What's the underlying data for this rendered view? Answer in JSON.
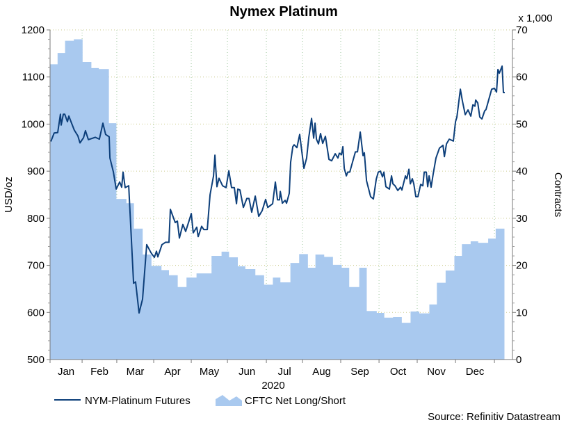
{
  "chart_data": {
    "type": "line+area",
    "title": "Nymex Platinum",
    "xlabel": "2020",
    "ylabel_left": "USD/oz",
    "ylabel_right": "Contracts",
    "right_multiplier": "x 1,000",
    "source": "Source: Refinitiv Datastream",
    "x_unit": "days from start of plot",
    "xlim": [
      0,
      369.4
    ],
    "ylim_left": [
      500,
      1200
    ],
    "ylim_right": [
      0,
      70
    ],
    "left_ticks": [
      500,
      600,
      700,
      800,
      900,
      1000,
      1100,
      1200
    ],
    "right_ticks": [
      0,
      10,
      20,
      30,
      40,
      50,
      60,
      70
    ],
    "month_boundaries": [
      0,
      25.6,
      53.3,
      82.8,
      112.8,
      141.7,
      172.8,
      201.7,
      232.2,
      262.8,
      293.3,
      323.9,
      355
    ],
    "months": [
      "Jan",
      "Feb",
      "Mar",
      "Apr",
      "May",
      "Jun",
      "Jul",
      "Aug",
      "Sep",
      "Oct",
      "Nov",
      "Dec"
    ],
    "grid": true,
    "legend_position": "bottom-left",
    "colors": {
      "line": "#0d3f7a",
      "area": "#a9c9ef",
      "grid": "#c9c98a"
    },
    "series": [
      {
        "name": "NYM-Platinum Futures",
        "axis": "left",
        "kind": "line",
        "x": [
          0.6,
          3.3,
          6.1,
          8.3,
          8.9,
          10.6,
          11.7,
          13.9,
          15,
          16.7,
          19.4,
          22.2,
          23.9,
          26.7,
          28.3,
          30.6,
          36.1,
          39.4,
          42.2,
          44.4,
          47.2,
          47.8,
          50.6,
          52.8,
          55.6,
          57.2,
          58.3,
          60,
          62.8,
          66.7,
          68.3,
          71.1,
          73.9,
          77.2,
          80.6,
          83.3,
          85,
          86.1,
          89.4,
          92.2,
          95,
          96.1,
          100,
          101.7,
          103.3,
          106.1,
          108.3,
          111.1,
          112.8,
          114.4,
          117.2,
          118.3,
          121.1,
          122.8,
          125.6,
          127.8,
          130.6,
          131.7,
          133.3,
          135,
          137.8,
          140.6,
          142.8,
          145,
          147.2,
          148.9,
          150,
          151.7,
          154.4,
          157.2,
          158.9,
          161.1,
          163.9,
          166.7,
          169.4,
          172.2,
          173.9,
          177.8,
          180,
          181.7,
          183.3,
          183.9,
          185.6,
          187.8,
          188.9,
          191.1,
          192.2,
          193.9,
          195,
          197.2,
          199.4,
          202.8,
          205,
          206.7,
          208.9,
          210.6,
          211.7,
          212.8,
          214.4,
          216.1,
          217.8,
          220,
          222.8,
          225,
          227.8,
          230,
          231.1,
          232.8,
          233.9,
          235,
          236.7,
          237.8,
          239.4,
          243.9,
          245.6,
          247.8,
          250,
          251.1,
          252.8,
          256.1,
          258.3,
          260.6,
          262.2,
          263.9,
          265.6,
          266.7,
          268.3,
          271.1,
          272.8,
          273.9,
          275.6,
          277.8,
          280,
          281.1,
          283.9,
          285,
          286.7,
          287.8,
          289.4,
          290.6,
          292.2,
          293.9,
          296.1,
          297.8,
          298.9,
          300.6,
          301.7,
          302.8,
          304.4,
          306.1,
          308.3,
          311.1,
          313.9,
          315,
          316.7,
          318.9,
          322.2,
          323.9,
          325,
          327.8,
          329.4,
          331.7,
          333.9,
          336.1,
          337.8,
          339.4,
          340,
          341.7,
          343.3,
          345,
          347.2,
          348.3,
          352.8,
          355,
          356.7,
          357.8,
          358.9,
          361.1,
          362.2,
          363.3
        ],
        "y": [
          963,
          981,
          982,
          1021,
          998,
          1021,
          1021,
          1005,
          1017,
          1005,
          987,
          975,
          960,
          971,
          986,
          967,
          972,
          968,
          1002,
          978,
          973,
          928,
          898,
          862,
          877,
          866,
          898,
          865,
          869,
          662,
          665,
          599,
          628,
          744,
          727,
          717,
          730,
          718,
          744,
          749,
          749,
          819,
          791,
          794,
          758,
          787,
          772,
          795,
          810,
          769,
          781,
          761,
          783,
          776,
          776,
          850,
          890,
          934,
          867,
          885,
          869,
          865,
          901,
          865,
          865,
          831,
          862,
          860,
          823,
          842,
          842,
          813,
          847,
          804,
          816,
          840,
          823,
          831,
          877,
          839,
          839,
          857,
          832,
          838,
          832,
          853,
          919,
          952,
          956,
          950,
          978,
          906,
          928,
          972,
          1012,
          970,
          1002,
          968,
          958,
          980,
          959,
          974,
          925,
          922,
          937,
          928,
          938,
          935,
          952,
          906,
          890,
          898,
          898,
          941,
          941,
          983,
          933,
          939,
          880,
          846,
          841,
          883,
          898,
          900,
          888,
          898,
          867,
          862,
          890,
          873,
          869,
          859,
          866,
          860,
          890,
          884,
          904,
          873,
          884,
          873,
          846,
          846,
          872,
          869,
          898,
          898,
          867,
          890,
          866,
          894,
          928,
          949,
          955,
          931,
          958,
          968,
          964,
          1005,
          1015,
          1074,
          1049,
          1020,
          1030,
          1017,
          1041,
          1038,
          1051,
          1045,
          1015,
          1011,
          1028,
          1031,
          1074,
          1076,
          1068,
          1116,
          1108,
          1123,
          1067,
          1067
        ]
      },
      {
        "name": "CFTC Net Long/Short",
        "axis": "right",
        "kind": "step-area",
        "x_start": [
          0,
          6,
          12,
          19,
          26,
          33,
          39,
          47,
          53,
          61,
          67,
          74,
          81,
          89,
          95,
          102,
          109,
          117,
          129,
          137,
          143,
          150,
          156,
          164,
          171,
          178,
          184,
          192,
          199,
          206,
          212,
          219,
          226,
          233,
          239,
          247,
          253,
          261,
          267,
          274,
          281,
          288,
          295,
          303,
          309,
          316,
          323,
          329,
          336,
          342,
          350,
          356
        ],
        "x_end": 363,
        "y": [
          62.7,
          65.1,
          67.7,
          68.0,
          63.2,
          61.9,
          61.7,
          50.2,
          34.1,
          33.2,
          27.8,
          22.3,
          19.9,
          19.0,
          17.9,
          15.4,
          17.4,
          18.3,
          22.0,
          22.9,
          21.7,
          19.8,
          19.2,
          17.9,
          15.9,
          17.4,
          16.4,
          20.5,
          22.4,
          19.5,
          22.3,
          21.8,
          20.1,
          19.5,
          15.4,
          19.5,
          10.3,
          9.9,
          8.9,
          9.0,
          7.8,
          10.2,
          9.8,
          11.7,
          16.3,
          18.9,
          22.0,
          24.5,
          25.1,
          24.8,
          25.7,
          27.8
        ]
      }
    ]
  }
}
